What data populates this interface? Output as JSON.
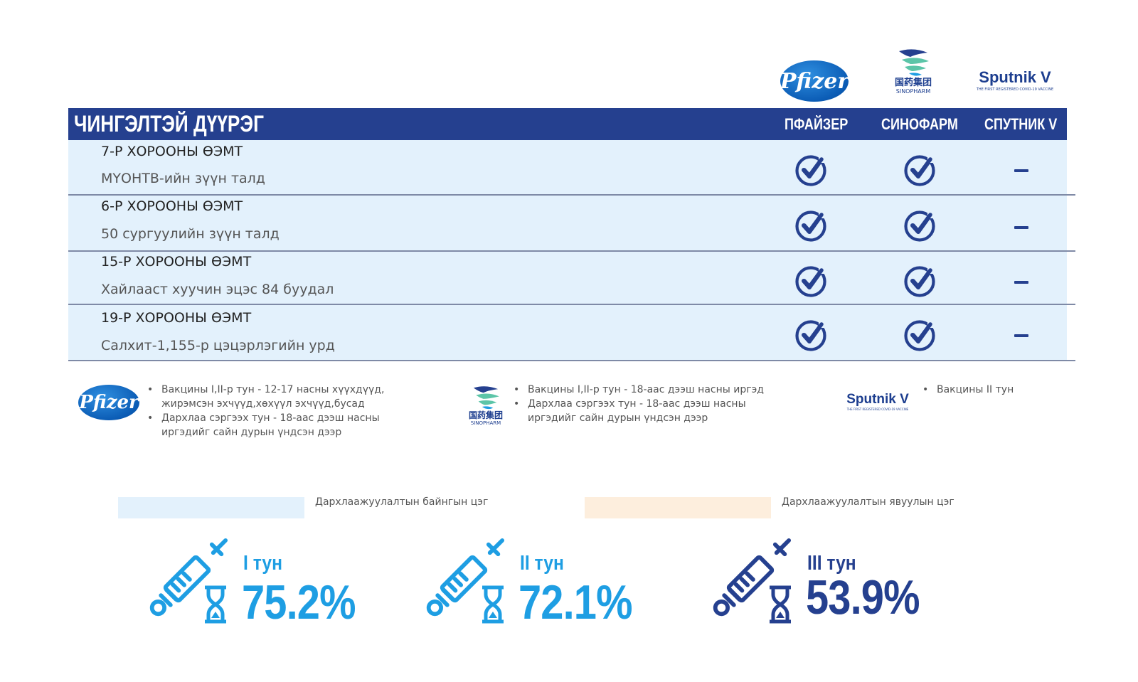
{
  "logos": {
    "pfizer": "Pfizer",
    "sinopharm_cn": "国药集团",
    "sinopharm_en": "SINOPHARM",
    "sputnik": "Sputnik V",
    "sputnik_tagline": "THE FIRST REGISTERED COVID-19 VACCINE"
  },
  "table": {
    "district": "ЧИНГЭЛТЭЙ ДҮҮРЭГ",
    "columns": [
      "ПФАЙЗЕР",
      "СИНОФАРМ",
      "СПУТНИК V"
    ],
    "rows": [
      {
        "title": "7-Р ХОРООНЫ ӨЭМТ",
        "location": "МҮОНТВ-ийн зүүн талд",
        "pfizer": "check",
        "sinopharm": "check",
        "sputnik": "dash"
      },
      {
        "title": "6-Р ХОРООНЫ ӨЭМТ",
        "location": "50 сургуулийн зүүн талд",
        "pfizer": "check",
        "sinopharm": "check",
        "sputnik": "dash"
      },
      {
        "title": "15-Р ХОРООНЫ ӨЭМТ",
        "location": "Хайлааст хуучин эцэс 84 буудал",
        "pfizer": "check",
        "sinopharm": "check",
        "sputnik": "dash"
      },
      {
        "title": "19-Р ХОРООНЫ ӨЭМТ",
        "location": "Салхит-1,155-р цэцэрлэгийн урд",
        "pfizer": "check",
        "sinopharm": "check",
        "sputnik": "dash"
      }
    ]
  },
  "notes": {
    "pfizer": [
      "Вакцины I,II-р тун - 12-17 насны хүүхдүүд, жирэмсэн эхчүүд,хөхүүл эхчүүд,бусад",
      "Дархлаа сэргээх тун - 18-аас дээш насны иргэдийг сайн дурын үндсэн дээр"
    ],
    "sinopharm": [
      "Вакцины I,II-р тун - 18-аас дээш насны иргэд",
      "Дархлаа сэргээх тун - 18-аас дээш насны иргэдийг сайн дурын үндсэн дээр"
    ],
    "sputnik": [
      "Вакцины II тун"
    ]
  },
  "legend": [
    {
      "label": "Дархлаажуулалтын байнгын цэг",
      "color": "#e3f1fc"
    },
    {
      "label": "Дархлаажуулалтын явуулын цэг",
      "color": "#fdeedd"
    }
  ],
  "stats": [
    {
      "label": "I тун",
      "value": "75.2%",
      "percent": 75.2,
      "color": "#1e9ee3"
    },
    {
      "label": "II тун",
      "value": "72.1%",
      "percent": 72.1,
      "color": "#1e9ee3"
    },
    {
      "label": "III тун",
      "value": "53.9%",
      "percent": 53.9,
      "color": "#25408f"
    }
  ],
  "colors": {
    "header": "#25408f",
    "row_bg": "#e3f1fc",
    "mobile_bg": "#fdeedd",
    "accent_light": "#1e9ee3",
    "accent_dark": "#25408f"
  }
}
